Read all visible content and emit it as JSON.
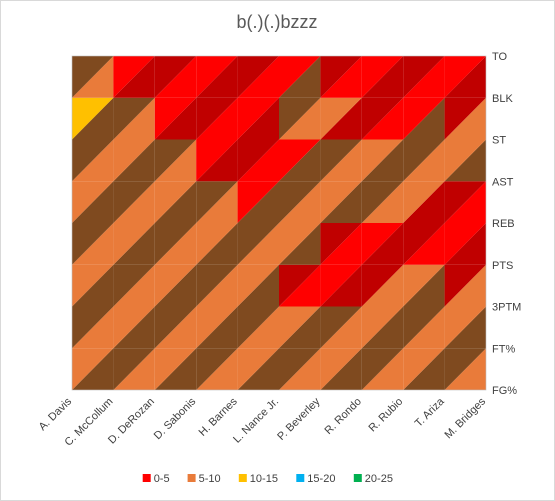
{
  "chart_data": {
    "type": "surface-contour",
    "title": "b(.)(.)bzzz",
    "x_categories": [
      "A. Davis",
      "C. McCollum",
      "D. DeRozan",
      "D. Sabonis",
      "H. Barnes",
      "L. Nance Jr.",
      "P. Beverley",
      "R. Rondo",
      "R. Rubio",
      "T. Ariza",
      "M. Bridges"
    ],
    "y_categories": [
      "FG%",
      "FT%",
      "3PTM",
      "PTS",
      "REB",
      "AST",
      "ST",
      "BLK",
      "TO"
    ],
    "values": [
      [
        7,
        7,
        7,
        7,
        7,
        7,
        7,
        7,
        7,
        7,
        7
      ],
      [
        7,
        7,
        7,
        7,
        7,
        7,
        7,
        7,
        7,
        7,
        7
      ],
      [
        6,
        6,
        7,
        3,
        7,
        3,
        7,
        3,
        7,
        7,
        6
      ],
      [
        13,
        7,
        7,
        7,
        7,
        7,
        3,
        3,
        7,
        3,
        3
      ],
      [
        7,
        7,
        6,
        7,
        7,
        7,
        7,
        3,
        3,
        3,
        3
      ],
      [
        7,
        6,
        6,
        7,
        3,
        3,
        6,
        6,
        12,
        7,
        3
      ],
      [
        7,
        7,
        7,
        3,
        3,
        3,
        7,
        3,
        7,
        7,
        7
      ],
      [
        17,
        7,
        3,
        3,
        3,
        7,
        7,
        3,
        3,
        3,
        3
      ],
      [
        3,
        3,
        3,
        3,
        3,
        3,
        3,
        3,
        3,
        3,
        3
      ]
    ],
    "legend": [
      {
        "label": "0-5",
        "color": "#ff0000"
      },
      {
        "label": "5-10",
        "color": "#e97b3a"
      },
      {
        "label": "10-15",
        "color": "#ffc000"
      },
      {
        "label": "15-20",
        "color": "#00b0f0"
      },
      {
        "label": "20-25",
        "color": "#00b050"
      }
    ],
    "legend_position": "bottom"
  }
}
